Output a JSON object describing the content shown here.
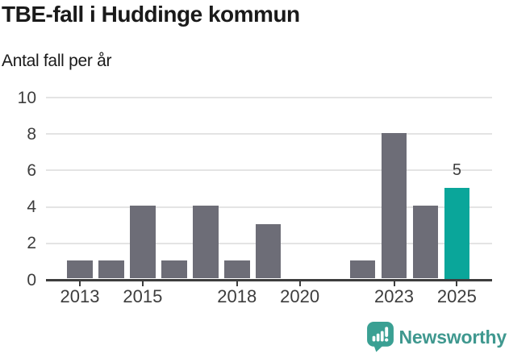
{
  "header": {
    "title": "TBE-fall i Huddinge kommun",
    "subtitle": "Antal fall per år"
  },
  "chart_data": {
    "type": "bar",
    "title": "TBE-fall i Huddinge kommun",
    "subtitle": "Antal fall per år",
    "categories": [
      "2013",
      "2014",
      "2015",
      "2016",
      "2017",
      "2018",
      "2019",
      "2020",
      "2021",
      "2022",
      "2023",
      "2024",
      "2025"
    ],
    "values": [
      1,
      1,
      4,
      1,
      4,
      1,
      3,
      0,
      0,
      1,
      8,
      4,
      5
    ],
    "highlight_index": 12,
    "highlight_value_label": "5",
    "xlabel": "",
    "ylabel": "Antal fall per år",
    "ylim": [
      0,
      10
    ],
    "y_ticks": [
      0,
      2,
      4,
      6,
      8,
      10
    ],
    "x_tick_labels": [
      "2013",
      "2015",
      "2018",
      "2020",
      "2023",
      "2025"
    ],
    "grid": true,
    "legend": "none",
    "colors": {
      "bar": "#6d6d77",
      "highlight": "#0aa69a",
      "grid": "#e4e4e4",
      "axis": "#3d3d3d",
      "tick_text": "#3d3d3d"
    }
  },
  "footer": {
    "brand": "Newsworthy",
    "brand_color": "#3f988f",
    "logo_icon": "newsworthy-pin-barchart-icon",
    "logo_color": "#3aa093"
  }
}
